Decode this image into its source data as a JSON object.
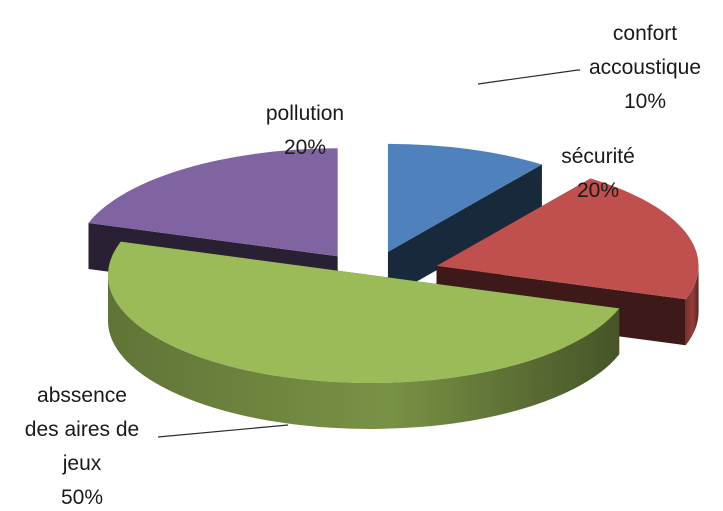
{
  "chart_data": {
    "type": "pie",
    "style": "3d-exploded",
    "title": "",
    "legend": "none",
    "slices": [
      {
        "label_lines": [
          "confort",
          "accoustique"
        ],
        "value": 10,
        "value_label": "10%",
        "color": "#4F81BD"
      },
      {
        "label_lines": [
          "sécurité"
        ],
        "value": 20,
        "value_label": "20%",
        "color": "#C0504D"
      },
      {
        "label_lines": [
          "abssence",
          "des aires de",
          "jeux"
        ],
        "value": 50,
        "value_label": "50%",
        "color": "#9BBB59"
      },
      {
        "label_lines": [
          "pollution"
        ],
        "value": 20,
        "value_label": "20%",
        "color": "#8064A2"
      }
    ]
  }
}
